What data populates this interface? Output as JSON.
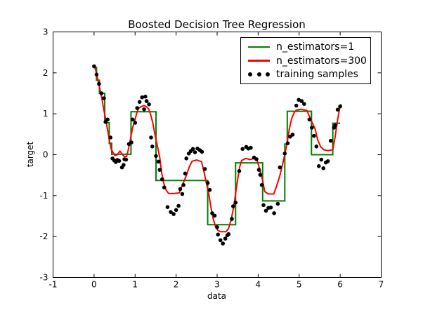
{
  "figure": {
    "background": "#ffffff",
    "frame_color": "#000000"
  },
  "chart_data": {
    "type": "line",
    "title": "Boosted Decision Tree Regression",
    "xlabel": "data",
    "ylabel": "target",
    "xlim": [
      -1,
      7
    ],
    "ylim": [
      -3,
      3
    ],
    "xticks": [
      -1,
      0,
      1,
      2,
      3,
      4,
      5,
      6,
      7
    ],
    "yticks": [
      -3,
      -2,
      -1,
      0,
      1,
      2,
      3
    ],
    "grid": false,
    "legend": {
      "position": "upper right"
    },
    "series": [
      {
        "name": "n_estimators=1",
        "type": "step",
        "color": "#008000",
        "linewidth": 2,
        "segments": [
          [
            0.0,
            0.06,
            2.13
          ],
          [
            0.06,
            0.13,
            1.82
          ],
          [
            0.13,
            0.26,
            1.5
          ],
          [
            0.26,
            0.37,
            0.78
          ],
          [
            0.37,
            0.43,
            0.28
          ],
          [
            0.43,
            0.9,
            0.01
          ],
          [
            0.9,
            1.51,
            1.05
          ],
          [
            1.51,
            2.77,
            -0.63
          ],
          [
            2.77,
            3.45,
            -1.71
          ],
          [
            3.45,
            4.11,
            -0.2
          ],
          [
            4.11,
            4.65,
            -1.13
          ],
          [
            4.65,
            4.71,
            0.26
          ],
          [
            4.71,
            5.3,
            1.06
          ],
          [
            5.3,
            5.82,
            0.0
          ],
          [
            5.82,
            6.0,
            0.77
          ]
        ]
      },
      {
        "name": "n_estimators=300",
        "type": "line",
        "color": "#ff0000",
        "linewidth": 2,
        "points": [
          [
            0.0,
            2.15
          ],
          [
            0.03,
            2.1
          ],
          [
            0.06,
            1.98
          ],
          [
            0.1,
            1.8
          ],
          [
            0.14,
            1.62
          ],
          [
            0.18,
            1.43
          ],
          [
            0.22,
            1.2
          ],
          [
            0.26,
            0.98
          ],
          [
            0.3,
            0.78
          ],
          [
            0.34,
            0.55
          ],
          [
            0.38,
            0.3
          ],
          [
            0.42,
            0.13
          ],
          [
            0.46,
            0.06
          ],
          [
            0.51,
            -0.02
          ],
          [
            0.57,
            0.0
          ],
          [
            0.63,
            0.09
          ],
          [
            0.68,
            0.02
          ],
          [
            0.73,
            -0.04
          ],
          [
            0.79,
            -0.05
          ],
          [
            0.83,
            0.1
          ],
          [
            0.88,
            0.34
          ],
          [
            0.94,
            0.66
          ],
          [
            1.0,
            0.86
          ],
          [
            1.05,
            1.06
          ],
          [
            1.1,
            1.15
          ],
          [
            1.16,
            1.18
          ],
          [
            1.22,
            1.2
          ],
          [
            1.28,
            1.17
          ],
          [
            1.33,
            1.12
          ],
          [
            1.38,
            0.98
          ],
          [
            1.43,
            0.78
          ],
          [
            1.48,
            0.51
          ],
          [
            1.54,
            0.23
          ],
          [
            1.6,
            -0.06
          ],
          [
            1.65,
            -0.45
          ],
          [
            1.7,
            -0.7
          ],
          [
            1.76,
            -0.87
          ],
          [
            1.82,
            -0.95
          ],
          [
            1.95,
            -0.95
          ],
          [
            2.08,
            -0.93
          ],
          [
            2.14,
            -0.77
          ],
          [
            2.2,
            -0.63
          ],
          [
            2.26,
            -0.48
          ],
          [
            2.32,
            -0.3
          ],
          [
            2.39,
            -0.16
          ],
          [
            2.5,
            -0.13
          ],
          [
            2.62,
            -0.17
          ],
          [
            2.68,
            -0.42
          ],
          [
            2.74,
            -0.7
          ],
          [
            2.79,
            -0.91
          ],
          [
            2.85,
            -1.29
          ],
          [
            2.9,
            -1.55
          ],
          [
            2.96,
            -1.76
          ],
          [
            3.02,
            -1.85
          ],
          [
            3.08,
            -1.88
          ],
          [
            3.22,
            -1.88
          ],
          [
            3.28,
            -1.8
          ],
          [
            3.34,
            -1.6
          ],
          [
            3.4,
            -1.3
          ],
          [
            3.45,
            -0.95
          ],
          [
            3.51,
            -0.54
          ],
          [
            3.55,
            -0.3
          ],
          [
            3.6,
            -0.14
          ],
          [
            3.7,
            -0.09
          ],
          [
            3.8,
            -0.12
          ],
          [
            3.9,
            -0.09
          ],
          [
            3.97,
            -0.12
          ],
          [
            4.05,
            -0.4
          ],
          [
            4.11,
            -0.63
          ],
          [
            4.16,
            -0.9
          ],
          [
            4.25,
            -0.96
          ],
          [
            4.38,
            -0.96
          ],
          [
            4.45,
            -0.77
          ],
          [
            4.53,
            -0.51
          ],
          [
            4.59,
            -0.26
          ],
          [
            4.65,
            0.0
          ],
          [
            4.71,
            0.31
          ],
          [
            4.76,
            0.63
          ],
          [
            4.82,
            0.89
          ],
          [
            4.88,
            1.03
          ],
          [
            4.93,
            1.09
          ],
          [
            5.05,
            1.11
          ],
          [
            5.19,
            1.08
          ],
          [
            5.25,
            0.94
          ],
          [
            5.31,
            0.8
          ],
          [
            5.39,
            0.63
          ],
          [
            5.45,
            0.37
          ],
          [
            5.52,
            0.2
          ],
          [
            5.6,
            0.12
          ],
          [
            5.7,
            0.1
          ],
          [
            5.82,
            0.12
          ],
          [
            5.88,
            0.45
          ],
          [
            5.93,
            0.8
          ],
          [
            5.99,
            1.15
          ],
          [
            6.02,
            1.22
          ]
        ]
      },
      {
        "name": "training samples",
        "type": "scatter",
        "color": "#000000",
        "markersize": 2.8,
        "points": [
          [
            0.0,
            2.16
          ],
          [
            0.06,
            1.96
          ],
          [
            0.12,
            1.73
          ],
          [
            0.18,
            1.5
          ],
          [
            0.24,
            1.38
          ],
          [
            0.28,
            0.8
          ],
          [
            0.33,
            0.86
          ],
          [
            0.4,
            0.42
          ],
          [
            0.45,
            -0.09
          ],
          [
            0.49,
            -0.14
          ],
          [
            0.53,
            -0.18
          ],
          [
            0.57,
            -0.13
          ],
          [
            0.61,
            -0.15
          ],
          [
            0.68,
            -0.31
          ],
          [
            0.72,
            -0.25
          ],
          [
            0.74,
            -0.11
          ],
          [
            0.78,
            -0.12
          ],
          [
            0.85,
            0.26
          ],
          [
            0.91,
            0.3
          ],
          [
            0.94,
            0.86
          ],
          [
            1.0,
            0.78
          ],
          [
            1.05,
            1.14
          ],
          [
            1.11,
            1.29
          ],
          [
            1.17,
            1.4
          ],
          [
            1.22,
            1.11
          ],
          [
            1.25,
            1.42
          ],
          [
            1.28,
            1.31
          ],
          [
            1.34,
            1.23
          ],
          [
            1.39,
            0.42
          ],
          [
            1.42,
            0.2
          ],
          [
            1.51,
            -0.03
          ],
          [
            1.57,
            -0.17
          ],
          [
            1.6,
            -0.37
          ],
          [
            1.66,
            -0.6
          ],
          [
            1.71,
            -0.8
          ],
          [
            1.79,
            -1.28
          ],
          [
            1.87,
            -1.4
          ],
          [
            1.94,
            -1.45
          ],
          [
            2.0,
            -1.35
          ],
          [
            2.06,
            -1.25
          ],
          [
            2.1,
            -0.84
          ],
          [
            2.15,
            -0.96
          ],
          [
            2.18,
            -0.74
          ],
          [
            2.22,
            -0.46
          ],
          [
            2.25,
            -0.09
          ],
          [
            2.31,
            0.03
          ],
          [
            2.36,
            0.09
          ],
          [
            2.41,
            0.14
          ],
          [
            2.46,
            0.06
          ],
          [
            2.52,
            0.15
          ],
          [
            2.58,
            0.11
          ],
          [
            2.63,
            0.07
          ],
          [
            2.7,
            -0.35
          ],
          [
            2.77,
            -0.69
          ],
          [
            2.82,
            -0.86
          ],
          [
            2.88,
            -1.43
          ],
          [
            2.94,
            -1.49
          ],
          [
            3.0,
            -1.77
          ],
          [
            3.02,
            -1.95
          ],
          [
            3.08,
            -2.09
          ],
          [
            3.14,
            -2.17
          ],
          [
            3.2,
            -2.05
          ],
          [
            3.25,
            -1.97
          ],
          [
            3.28,
            -1.94
          ],
          [
            3.36,
            -1.57
          ],
          [
            3.39,
            -1.26
          ],
          [
            3.45,
            -1.17
          ],
          [
            3.54,
            -0.4
          ],
          [
            3.62,
            0.14
          ],
          [
            3.71,
            0.19
          ],
          [
            3.76,
            0.15
          ],
          [
            3.82,
            0.17
          ],
          [
            3.9,
            -0.07
          ],
          [
            3.96,
            -0.11
          ],
          [
            4.02,
            -0.37
          ],
          [
            4.05,
            -0.49
          ],
          [
            4.09,
            -0.74
          ],
          [
            4.13,
            -1.23
          ],
          [
            4.19,
            -1.37
          ],
          [
            4.25,
            -1.3
          ],
          [
            4.31,
            -1.29
          ],
          [
            4.39,
            -1.43
          ],
          [
            4.48,
            -1.2
          ],
          [
            4.53,
            -0.31
          ],
          [
            4.65,
            0.03
          ],
          [
            4.72,
            0.28
          ],
          [
            4.78,
            0.44
          ],
          [
            4.84,
            0.49
          ],
          [
            4.93,
            1.2
          ],
          [
            4.99,
            1.34
          ],
          [
            5.06,
            1.31
          ],
          [
            5.12,
            1.24
          ],
          [
            5.25,
            0.86
          ],
          [
            5.31,
            0.66
          ],
          [
            5.36,
            0.46
          ],
          [
            5.42,
            0.2
          ],
          [
            5.48,
            -0.28
          ],
          [
            5.54,
            -0.12
          ],
          [
            5.59,
            -0.33
          ],
          [
            5.65,
            -0.19
          ],
          [
            5.7,
            -0.16
          ],
          [
            5.77,
            0.34
          ],
          [
            5.85,
            0.66
          ],
          [
            5.88,
            0.72
          ],
          [
            5.94,
            1.1
          ],
          [
            6.0,
            1.18
          ]
        ]
      }
    ]
  }
}
